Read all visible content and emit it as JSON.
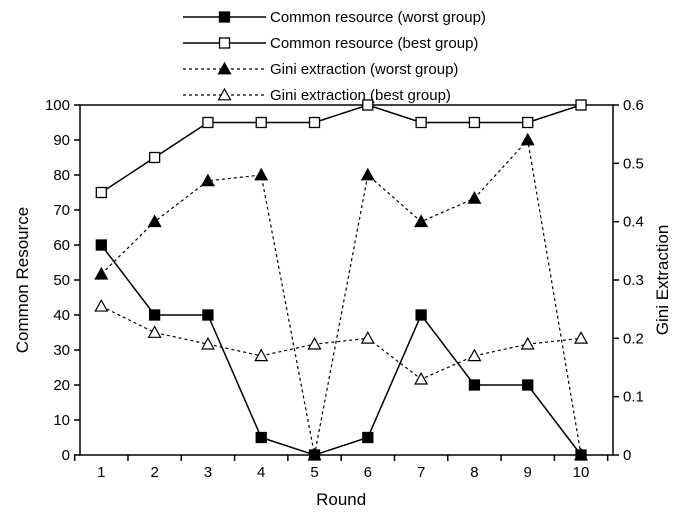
{
  "chart_data": {
    "type": "line",
    "title": "",
    "xlabel": "Round",
    "ylabel": "Common Resource",
    "y2label": "Gini Extraction",
    "x": [
      1,
      2,
      3,
      4,
      5,
      6,
      7,
      8,
      9,
      10
    ],
    "xticks": [
      "1",
      "2",
      "3",
      "4",
      "5",
      "6",
      "7",
      "8",
      "9",
      "10"
    ],
    "ylim": [
      0,
      100
    ],
    "yticks": [
      "0",
      "10",
      "20",
      "30",
      "40",
      "50",
      "60",
      "70",
      "80",
      "90",
      "100"
    ],
    "y2lim": [
      0,
      0.6
    ],
    "y2ticks": [
      "0",
      "0.1",
      "0.2",
      "0.3",
      "0.4",
      "0.5",
      "0.6"
    ],
    "grid": false,
    "legend_position": "top-center",
    "series": [
      {
        "name": "Common resource (worst group)",
        "axis": "left",
        "line": "solid",
        "marker": "filled-square",
        "values": [
          60,
          40,
          40,
          5,
          0,
          5,
          40,
          20,
          20,
          0
        ]
      },
      {
        "name": "Common resource (best group)",
        "axis": "left",
        "line": "solid",
        "marker": "open-square",
        "values": [
          75,
          85,
          95,
          95,
          95,
          100,
          95,
          95,
          95,
          100
        ]
      },
      {
        "name": "Gini extraction (worst group)",
        "axis": "right",
        "line": "dotted",
        "marker": "filled-triangle",
        "values": [
          0.31,
          0.4,
          0.47,
          0.48,
          0.0,
          0.48,
          0.4,
          0.44,
          0.54,
          0.0
        ]
      },
      {
        "name": "Gini extraction (best group)",
        "axis": "right",
        "line": "dotted",
        "marker": "open-triangle",
        "values": [
          0.255,
          0.21,
          0.19,
          0.17,
          0.19,
          0.2,
          0.13,
          0.17,
          0.19,
          0.2
        ]
      }
    ],
    "colors": {
      "line": "#000000",
      "background": "#ffffff"
    }
  }
}
